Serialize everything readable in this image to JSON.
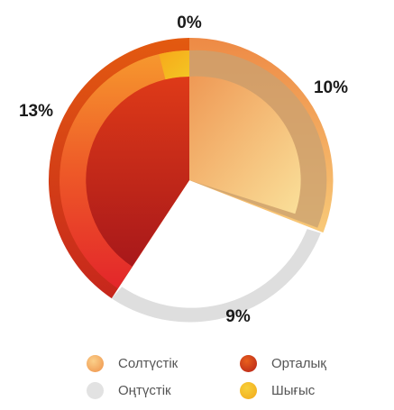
{
  "chart_data": {
    "type": "pie",
    "variant": "radial-ring-with-inner-sectors",
    "slices": [
      {
        "name": "Солтүстік",
        "label": "10%",
        "value": 10,
        "color": "#f2a25e"
      },
      {
        "name": "Оңтүстік",
        "label": "9%",
        "value": 9,
        "color": "#dedede"
      },
      {
        "name": "Орталық",
        "label": "13%",
        "value": 13,
        "color": "#d9301e"
      },
      {
        "name": "Шығыс",
        "label": "0%",
        "value": 0,
        "color": "#f4b81c"
      }
    ],
    "legend": {
      "placement": "bottom",
      "items": [
        "Солтүстік",
        "Орталық",
        "Оңтүстік",
        "Шығыс"
      ]
    }
  }
}
